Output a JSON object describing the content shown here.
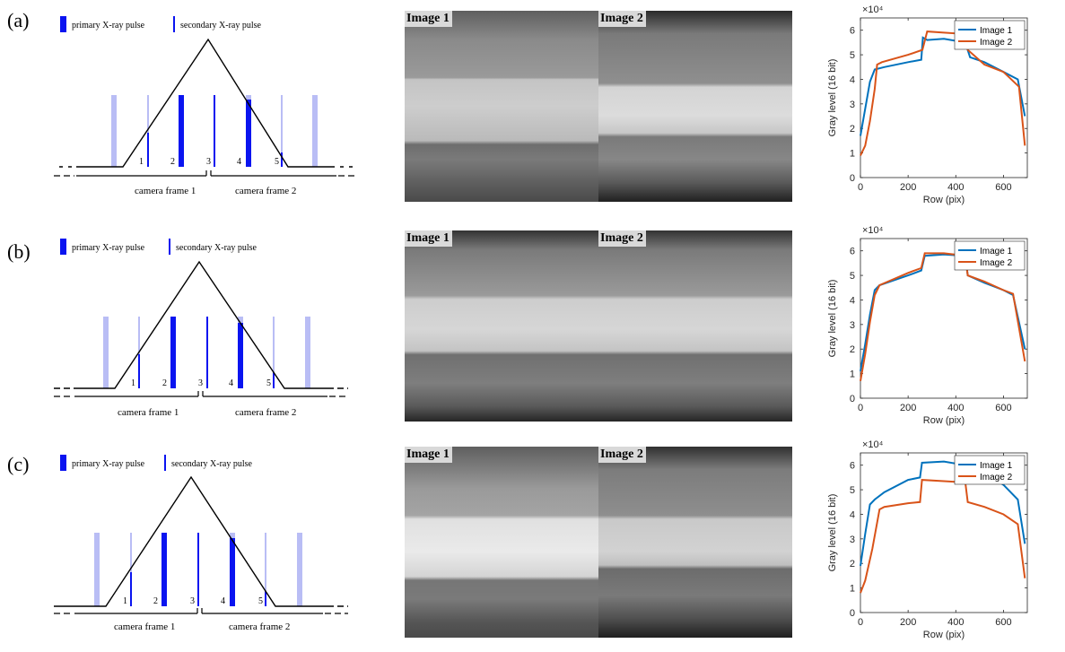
{
  "rows": [
    {
      "label": "(a)",
      "legend": {
        "primary": "primary X-ray pulse",
        "secondary": "secondary X-ray pulse"
      },
      "pulse_numbers": [
        "1",
        "2",
        "3",
        "4",
        "5"
      ],
      "frames": [
        "camera frame 1",
        "camera frame 2"
      ],
      "images": [
        "Image 1",
        "Image 2"
      ]
    },
    {
      "label": "(b)",
      "legend": {
        "primary": "primary X-ray pulse",
        "secondary": "secondary X-ray pulse"
      },
      "pulse_numbers": [
        "1",
        "2",
        "3",
        "4",
        "5"
      ],
      "frames": [
        "camera frame 1",
        "camera frame 2"
      ],
      "images": [
        "Image 1",
        "Image 2"
      ]
    },
    {
      "label": "(c)",
      "legend": {
        "primary": "primary X-ray pulse",
        "secondary": "secondary X-ray pulse"
      },
      "pulse_numbers": [
        "1",
        "2",
        "3",
        "4",
        "5"
      ],
      "frames": [
        "camera frame 1",
        "camera frame 2"
      ],
      "images": [
        "Image 1",
        "Image 2"
      ]
    }
  ],
  "colors": {
    "primary": "#0a14f0",
    "light_pulse": "#b9bdf5",
    "series1": "#0072bd",
    "series2": "#d95319"
  },
  "chart_data": [
    {
      "type": "line",
      "xlabel": "Row (pix)",
      "ylabel": "Gray level (16 bit)",
      "y_exponent": "×10⁴",
      "xlim": [
        0,
        700
      ],
      "ylim": [
        0,
        6.5
      ],
      "xticks": [
        0,
        200,
        400,
        600
      ],
      "yticks": [
        0,
        1,
        2,
        3,
        4,
        5,
        6
      ],
      "legend_position": "top-right",
      "series": [
        {
          "name": "Image 1",
          "points": [
            [
              0,
              1.7
            ],
            [
              20,
              2.8
            ],
            [
              40,
              3.9
            ],
            [
              60,
              4.4
            ],
            [
              100,
              4.5
            ],
            [
              200,
              4.7
            ],
            [
              255,
              4.8
            ],
            [
              262,
              5.7
            ],
            [
              280,
              5.6
            ],
            [
              350,
              5.65
            ],
            [
              440,
              5.5
            ],
            [
              460,
              4.9
            ],
            [
              520,
              4.7
            ],
            [
              600,
              4.3
            ],
            [
              660,
              4.0
            ],
            [
              690,
              2.5
            ]
          ]
        },
        {
          "name": "Image 2",
          "points": [
            [
              0,
              0.9
            ],
            [
              20,
              1.3
            ],
            [
              40,
              2.3
            ],
            [
              60,
              3.6
            ],
            [
              70,
              4.6
            ],
            [
              90,
              4.7
            ],
            [
              200,
              5.0
            ],
            [
              260,
              5.2
            ],
            [
              280,
              5.95
            ],
            [
              350,
              5.9
            ],
            [
              430,
              5.85
            ],
            [
              450,
              5.2
            ],
            [
              520,
              4.6
            ],
            [
              600,
              4.3
            ],
            [
              665,
              3.7
            ],
            [
              690,
              1.3
            ]
          ]
        }
      ]
    },
    {
      "type": "line",
      "xlabel": "Row (pix)",
      "ylabel": "Gray level (16 bit)",
      "y_exponent": "×10⁴",
      "xlim": [
        0,
        700
      ],
      "ylim": [
        0,
        6.5
      ],
      "xticks": [
        0,
        200,
        400,
        600
      ],
      "yticks": [
        0,
        1,
        2,
        3,
        4,
        5,
        6
      ],
      "legend_position": "top-right",
      "series": [
        {
          "name": "Image 1",
          "points": [
            [
              0,
              1.1
            ],
            [
              20,
              2.2
            ],
            [
              40,
              3.4
            ],
            [
              60,
              4.4
            ],
            [
              80,
              4.6
            ],
            [
              200,
              5.0
            ],
            [
              255,
              5.2
            ],
            [
              270,
              5.8
            ],
            [
              350,
              5.85
            ],
            [
              440,
              5.8
            ],
            [
              450,
              5.0
            ],
            [
              520,
              4.7
            ],
            [
              600,
              4.4
            ],
            [
              640,
              4.2
            ],
            [
              690,
              2.0
            ]
          ]
        },
        {
          "name": "Image 2",
          "points": [
            [
              0,
              0.7
            ],
            [
              20,
              1.8
            ],
            [
              40,
              3.1
            ],
            [
              60,
              4.2
            ],
            [
              80,
              4.6
            ],
            [
              200,
              5.1
            ],
            [
              255,
              5.3
            ],
            [
              270,
              5.9
            ],
            [
              350,
              5.9
            ],
            [
              440,
              5.8
            ],
            [
              450,
              5.0
            ],
            [
              520,
              4.75
            ],
            [
              600,
              4.4
            ],
            [
              640,
              4.25
            ],
            [
              690,
              1.5
            ]
          ]
        }
      ]
    },
    {
      "type": "line",
      "xlabel": "Row (pix)",
      "ylabel": "Gray level (16 bit)",
      "y_exponent": "×10⁴",
      "xlim": [
        0,
        700
      ],
      "ylim": [
        0,
        6.5
      ],
      "xticks": [
        0,
        200,
        400,
        600
      ],
      "yticks": [
        0,
        1,
        2,
        3,
        4,
        5,
        6
      ],
      "legend_position": "top-right",
      "series": [
        {
          "name": "Image 1",
          "points": [
            [
              0,
              1.9
            ],
            [
              20,
              3.2
            ],
            [
              40,
              4.4
            ],
            [
              60,
              4.6
            ],
            [
              100,
              4.9
            ],
            [
              200,
              5.4
            ],
            [
              250,
              5.5
            ],
            [
              258,
              6.1
            ],
            [
              350,
              6.15
            ],
            [
              440,
              6.0
            ],
            [
              520,
              5.7
            ],
            [
              600,
              5.2
            ],
            [
              660,
              4.6
            ],
            [
              690,
              2.8
            ]
          ]
        },
        {
          "name": "Image 2",
          "points": [
            [
              0,
              0.8
            ],
            [
              20,
              1.3
            ],
            [
              50,
              2.6
            ],
            [
              80,
              4.2
            ],
            [
              100,
              4.3
            ],
            [
              200,
              4.45
            ],
            [
              250,
              4.5
            ],
            [
              258,
              5.4
            ],
            [
              350,
              5.35
            ],
            [
              440,
              5.3
            ],
            [
              450,
              4.5
            ],
            [
              520,
              4.3
            ],
            [
              600,
              4.0
            ],
            [
              660,
              3.6
            ],
            [
              690,
              1.4
            ]
          ]
        }
      ]
    }
  ]
}
